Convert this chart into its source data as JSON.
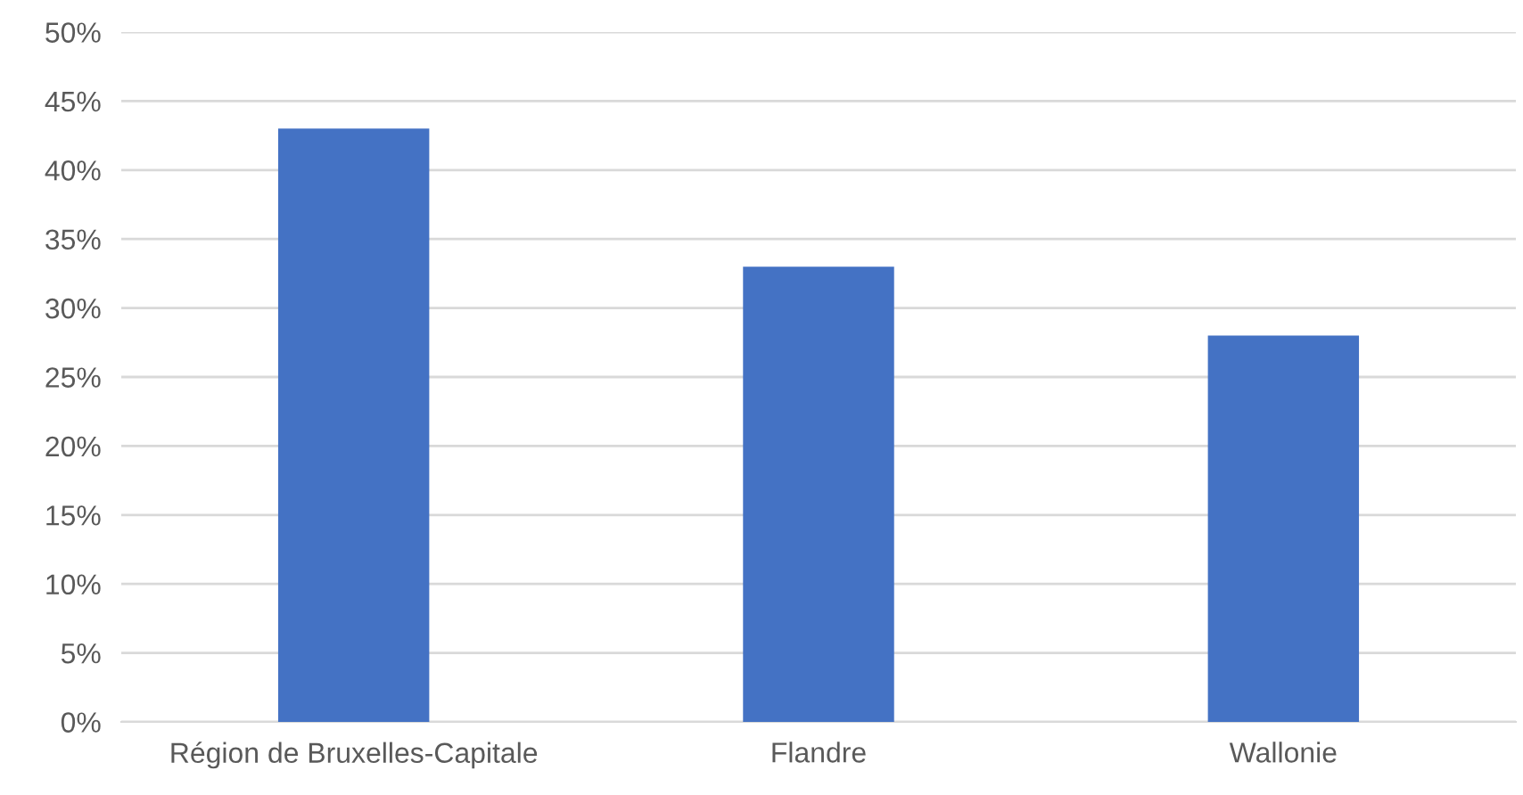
{
  "chart_data": {
    "type": "bar",
    "categories": [
      "Région de Bruxelles-Capitale",
      "Flandre",
      "Wallonie"
    ],
    "values": [
      43,
      33,
      28
    ],
    "color": "#4472c4",
    "ylim": [
      0,
      50
    ],
    "yticks": [
      {
        "value": 0,
        "label": "0%"
      },
      {
        "value": 5,
        "label": "5%"
      },
      {
        "value": 10,
        "label": "10%"
      },
      {
        "value": 15,
        "label": "15%"
      },
      {
        "value": 20,
        "label": "20%"
      },
      {
        "value": 25,
        "label": "25%"
      },
      {
        "value": 30,
        "label": "30%"
      },
      {
        "value": 35,
        "label": "35%"
      },
      {
        "value": 40,
        "label": "40%"
      },
      {
        "value": 45,
        "label": "45%"
      },
      {
        "value": 50,
        "label": "50%"
      }
    ],
    "grid": "y"
  }
}
